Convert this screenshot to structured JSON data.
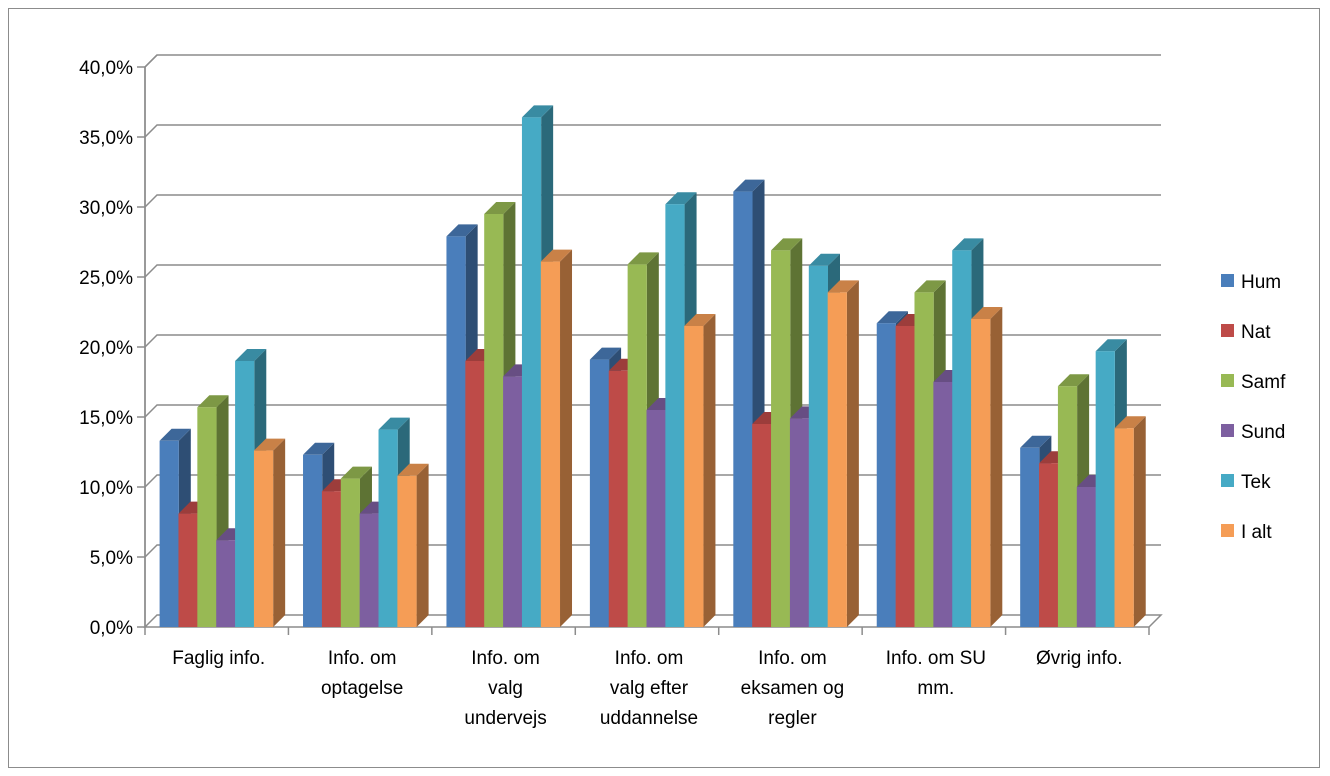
{
  "chart_data": {
    "type": "bar",
    "categories": [
      [
        "Faglig info."
      ],
      [
        "Info. om",
        "optagelse"
      ],
      [
        "Info. om",
        "valg",
        "undervejs"
      ],
      [
        "Info. om",
        "valg efter",
        "uddannelse"
      ],
      [
        "Info. om",
        "eksamen og",
        "regler"
      ],
      [
        "Info. om SU",
        "mm."
      ],
      [
        "Øvrig info."
      ]
    ],
    "series": [
      {
        "name": "Hum",
        "color": "#4a7ebb",
        "values": [
          13.3,
          12.3,
          27.9,
          19.1,
          31.1,
          21.7,
          12.8
        ]
      },
      {
        "name": "Nat",
        "color": "#be4b48",
        "values": [
          8.1,
          9.7,
          19.0,
          18.3,
          14.5,
          21.5,
          11.7
        ]
      },
      {
        "name": "Samf",
        "color": "#98b954",
        "values": [
          15.7,
          10.6,
          29.5,
          25.9,
          26.9,
          23.9,
          17.2
        ]
      },
      {
        "name": "Sund",
        "color": "#7d5fa0",
        "values": [
          6.2,
          8.1,
          17.9,
          15.5,
          14.9,
          17.5,
          10.0
        ]
      },
      {
        "name": "Tek",
        "color": "#46aac5",
        "values": [
          19.0,
          14.1,
          36.4,
          30.2,
          25.8,
          26.9,
          19.7
        ]
      },
      {
        "name": "I alt",
        "color": "#f59d56",
        "values": [
          12.6,
          10.8,
          26.1,
          21.5,
          23.9,
          22.0,
          14.2
        ]
      }
    ],
    "yticks": [
      "0,0%",
      "5,0%",
      "10,0%",
      "15,0%",
      "20,0%",
      "25,0%",
      "30,0%",
      "35,0%",
      "40,0%"
    ],
    "ylim": [
      0,
      40
    ],
    "grid": true,
    "legend_position": "right",
    "style": "3d-clustered-column"
  }
}
